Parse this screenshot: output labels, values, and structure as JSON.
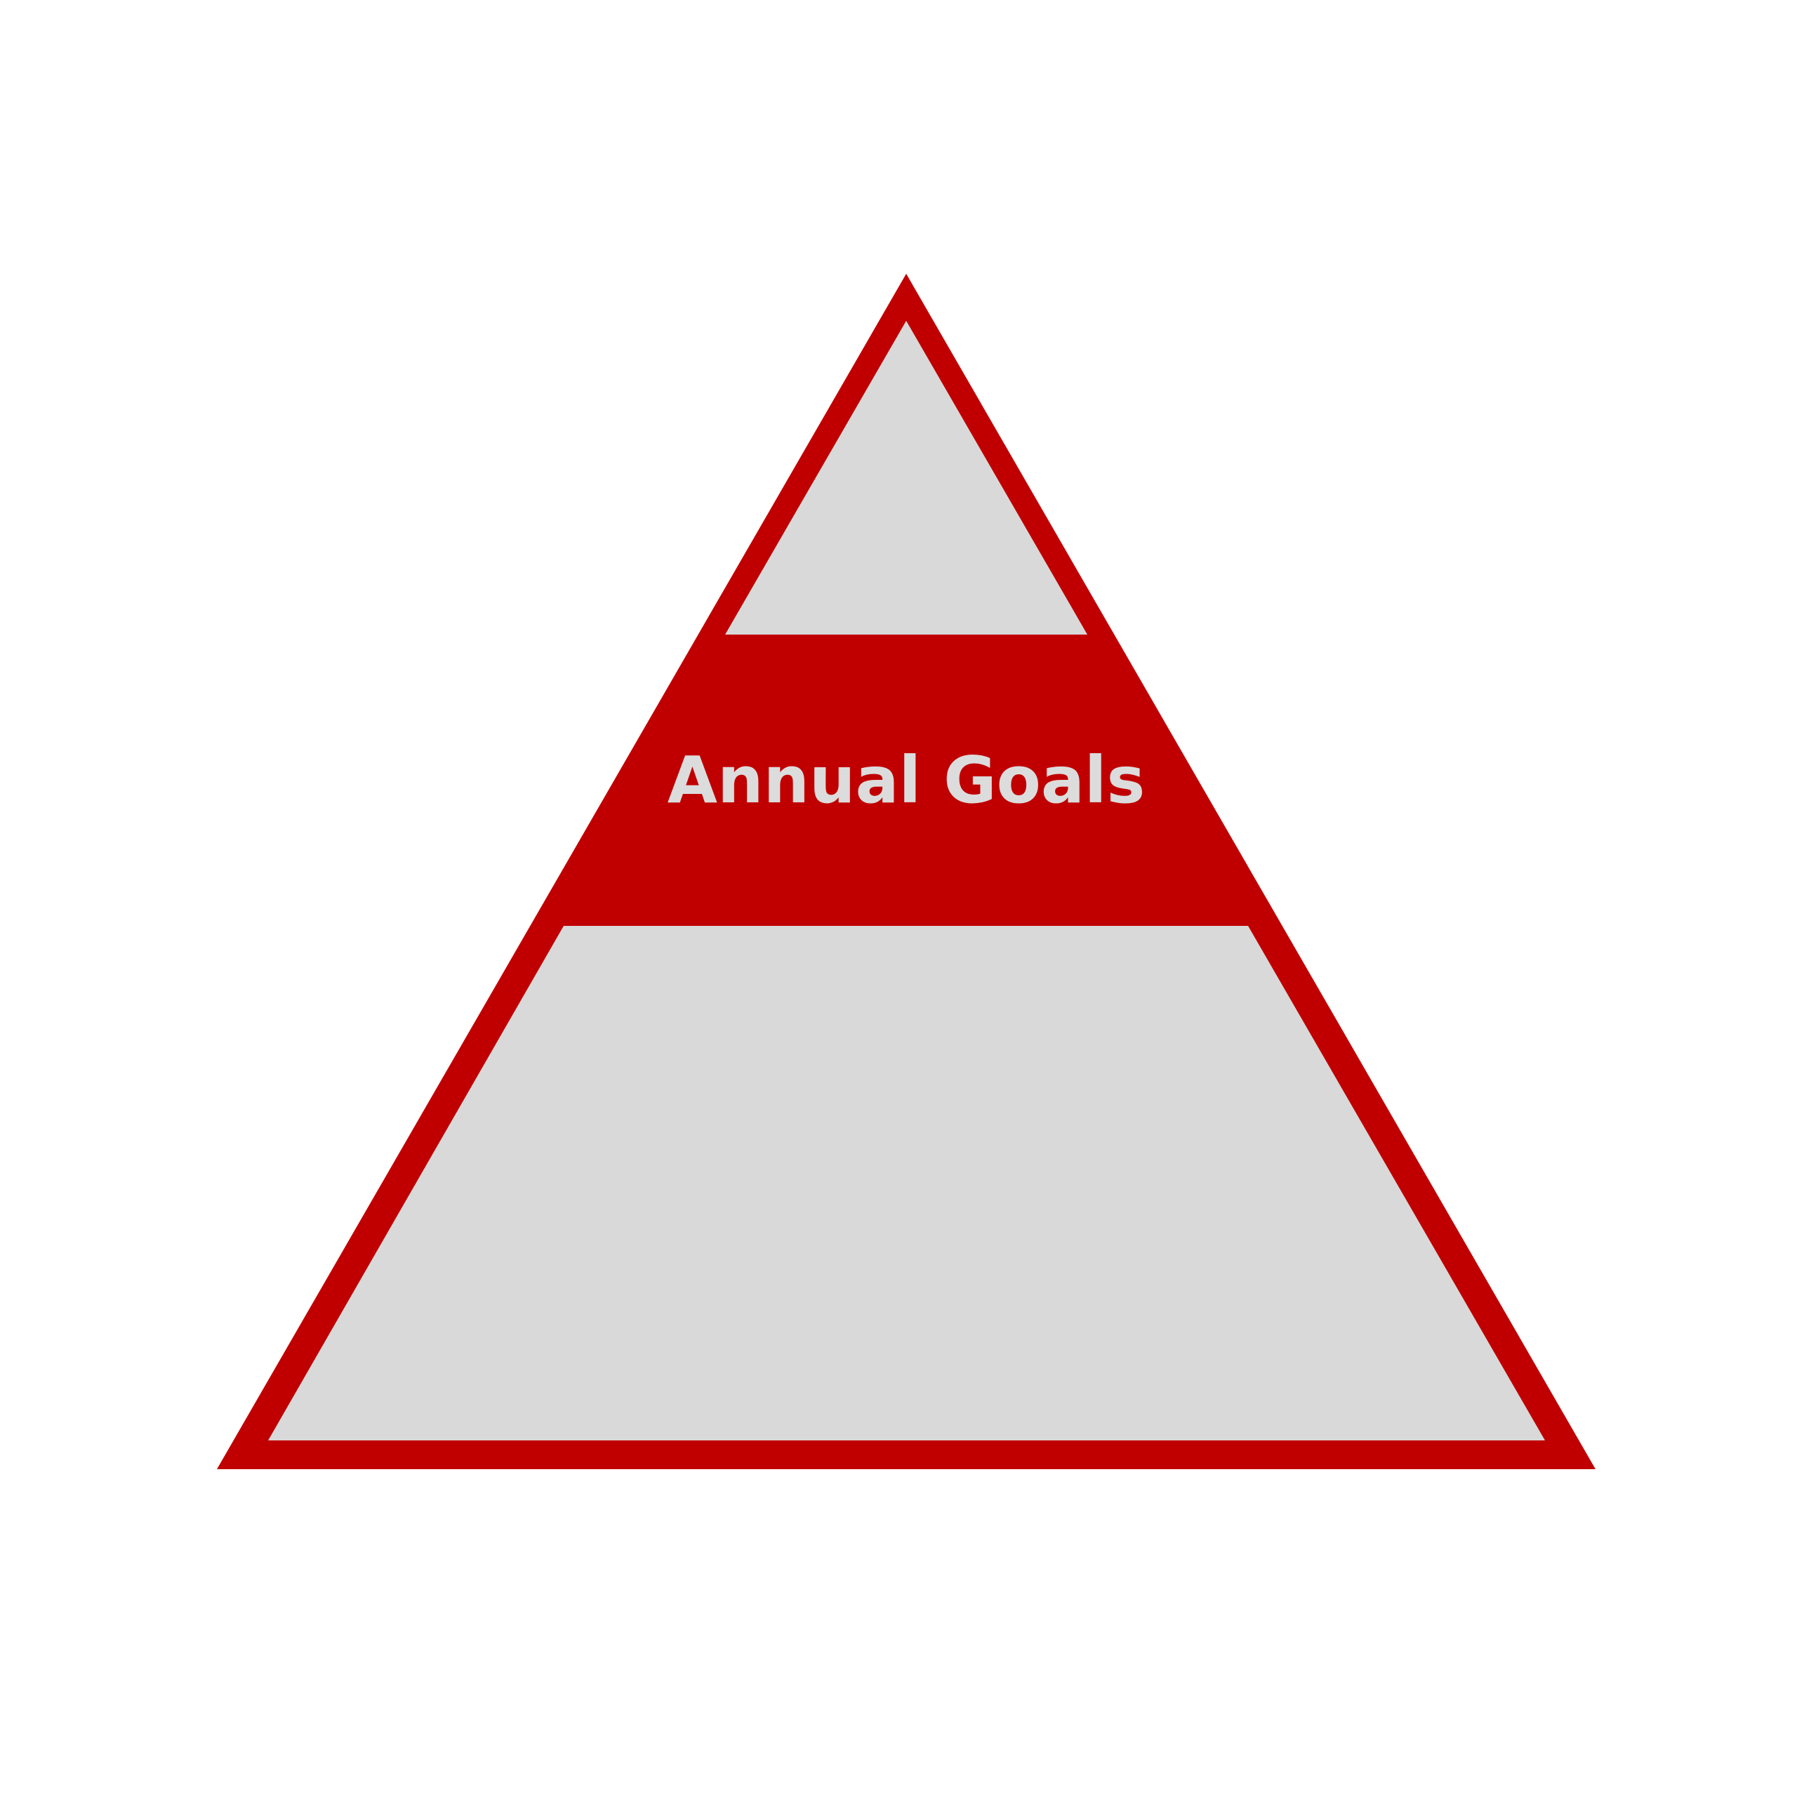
{
  "diagram": {
    "type": "pyramid",
    "levels": [
      {
        "id": "top",
        "label": ""
      },
      {
        "id": "middle",
        "label": "Annual Goals"
      },
      {
        "id": "bottom",
        "label": ""
      }
    ]
  },
  "colors": {
    "accent": "#c00000",
    "fill": "#d9d9d9",
    "label_text": "#dcdcdc",
    "background": "#ffffff"
  }
}
